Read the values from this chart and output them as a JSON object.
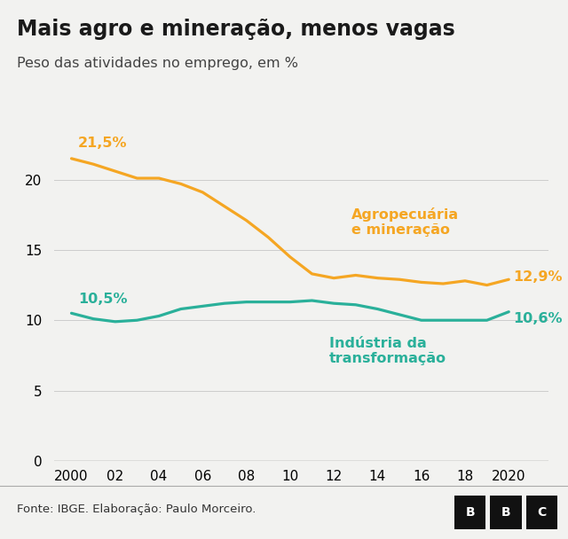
{
  "title": "Mais agro e mineração, menos vagas",
  "subtitle": "Peso das atividades no emprego, em %",
  "footnote": "Fonte: IBGE. Elaboração: Paulo Morceiro.",
  "title_fontsize": 17,
  "subtitle_fontsize": 11.5,
  "background_color": "#f2f2f0",
  "agro_color": "#f5a623",
  "industry_color": "#2ab09a",
  "years": [
    2000,
    2001,
    2002,
    2003,
    2004,
    2005,
    2006,
    2007,
    2008,
    2009,
    2010,
    2011,
    2012,
    2013,
    2014,
    2015,
    2016,
    2017,
    2018,
    2019,
    2020
  ],
  "agro": [
    21.5,
    21.1,
    20.6,
    20.1,
    20.1,
    19.7,
    19.1,
    18.1,
    17.1,
    15.9,
    14.5,
    13.3,
    13.0,
    13.2,
    13.0,
    12.9,
    12.7,
    12.6,
    12.8,
    12.5,
    12.9
  ],
  "industry": [
    10.5,
    10.1,
    9.9,
    10.0,
    10.3,
    10.8,
    11.0,
    11.2,
    11.3,
    11.3,
    11.3,
    11.4,
    11.2,
    11.1,
    10.8,
    10.4,
    10.0,
    10.0,
    10.0,
    10.0,
    10.6
  ],
  "ylim": [
    0,
    23
  ],
  "yticks": [
    0,
    5,
    10,
    15,
    20
  ],
  "xticks": [
    2000,
    2002,
    2004,
    2006,
    2008,
    2010,
    2012,
    2014,
    2016,
    2018,
    2020
  ],
  "xtick_labels": [
    "2000",
    "02",
    "04",
    "06",
    "08",
    "10",
    "12",
    "14",
    "16",
    "18",
    "2020"
  ],
  "agro_label": "Agropecuária\ne mineração",
  "industry_label": "Indústria da\ntransformação",
  "agro_start_label": "21,5%",
  "agro_end_label": "12,9%",
  "industry_start_label": "10,5%",
  "industry_end_label": "10,6%",
  "line_width": 2.3,
  "label_fontsize": 11.5,
  "annotation_fontsize": 11.5,
  "footnote_fontsize": 9.5,
  "tick_fontsize": 11
}
